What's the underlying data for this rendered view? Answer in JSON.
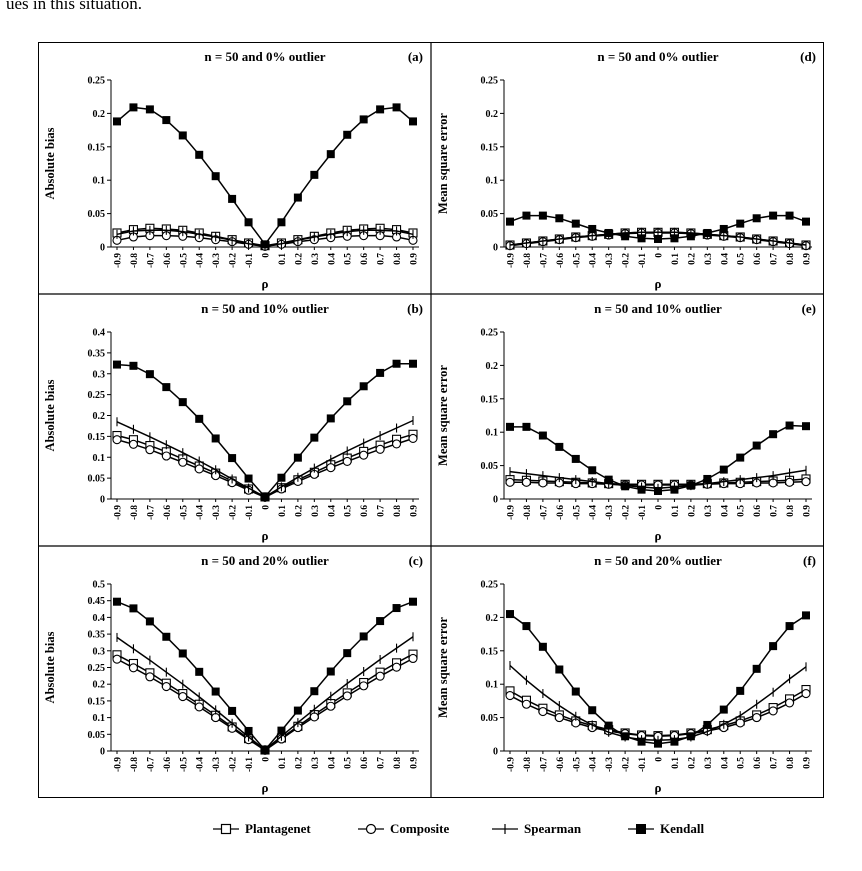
{
  "top_text": "ues in this situation.",
  "legend": [
    {
      "name": "Plantagenet",
      "marker": "square-open"
    },
    {
      "name": "Composite",
      "marker": "circle-open"
    },
    {
      "name": "Spearman",
      "marker": "plus"
    },
    {
      "name": "Kendall",
      "marker": "square-filled"
    }
  ],
  "colors": {
    "line": "#000000",
    "background": "#ffffff"
  },
  "chart_data": [
    {
      "panel": "(a)",
      "type": "line",
      "title": "n = 50 and 0% outlier",
      "xlabel": "ρ",
      "ylabel": "Absolute bias",
      "x": [
        -0.9,
        -0.8,
        -0.7,
        -0.6,
        -0.5,
        -0.4,
        -0.3,
        -0.2,
        -0.1,
        0,
        0.1,
        0.2,
        0.3,
        0.4,
        0.5,
        0.6,
        0.7,
        0.8,
        0.9
      ],
      "x_ticks": [
        "-0.9",
        "-0.8",
        "-0.7",
        "-0.6",
        "-0.5",
        "-0.4",
        "-0.3",
        "-0.2",
        "-0.1",
        "0",
        "0.1",
        "0.2",
        "0.3",
        "0.4",
        "0.5",
        "0.6",
        "0.7",
        "0.8",
        "0.9"
      ],
      "ylim": [
        0,
        0.25
      ],
      "y_ticks": [
        0,
        0.05,
        0.1,
        0.15,
        0.2,
        0.25
      ],
      "y_tick_labels": [
        "0",
        "0.05",
        "0.1",
        "0.15",
        "0.2",
        "0.25"
      ],
      "series": [
        {
          "name": "Plantagenet",
          "values": [
            0.021,
            0.026,
            0.028,
            0.027,
            0.025,
            0.021,
            0.016,
            0.011,
            0.006,
            0.002,
            0.006,
            0.011,
            0.016,
            0.021,
            0.025,
            0.027,
            0.028,
            0.026,
            0.021
          ]
        },
        {
          "name": "Composite",
          "values": [
            0.01,
            0.015,
            0.017,
            0.017,
            0.016,
            0.014,
            0.011,
            0.008,
            0.004,
            0.001,
            0.004,
            0.008,
            0.011,
            0.014,
            0.016,
            0.017,
            0.017,
            0.015,
            0.01
          ]
        },
        {
          "name": "Spearman",
          "values": [
            0.019,
            0.024,
            0.025,
            0.025,
            0.023,
            0.019,
            0.015,
            0.01,
            0.005,
            0.001,
            0.005,
            0.01,
            0.015,
            0.019,
            0.023,
            0.025,
            0.025,
            0.024,
            0.019
          ]
        },
        {
          "name": "Kendall",
          "values": [
            0.188,
            0.209,
            0.206,
            0.19,
            0.167,
            0.138,
            0.106,
            0.072,
            0.037,
            0.004,
            0.037,
            0.074,
            0.108,
            0.139,
            0.168,
            0.191,
            0.206,
            0.209,
            0.188
          ]
        }
      ]
    },
    {
      "panel": "(b)",
      "type": "line",
      "title": "n = 50 and 10% outlier",
      "xlabel": "ρ",
      "ylabel": "Absolute bias",
      "x": [
        -0.9,
        -0.8,
        -0.7,
        -0.6,
        -0.5,
        -0.4,
        -0.3,
        -0.2,
        -0.1,
        0,
        0.1,
        0.2,
        0.3,
        0.4,
        0.5,
        0.6,
        0.7,
        0.8,
        0.9
      ],
      "x_ticks": [
        "-0.9",
        "-0.8",
        "-0.7",
        "-0.6",
        "-0.5",
        "-0.4",
        "-0.3",
        "-0.2",
        "-0.1",
        "0",
        "0.1",
        "0.2",
        "0.3",
        "0.4",
        "0.5",
        "0.6",
        "0.7",
        "0.8",
        "0.9"
      ],
      "ylim": [
        0,
        0.4
      ],
      "y_ticks": [
        0,
        0.05,
        0.1,
        0.15,
        0.2,
        0.25,
        0.3,
        0.35,
        0.4
      ],
      "y_tick_labels": [
        "0",
        "0.05",
        "0.1",
        "0.15",
        "0.2",
        "0.25",
        "0.3",
        "0.35",
        "0.4"
      ],
      "series": [
        {
          "name": "Plantagenet",
          "values": [
            0.152,
            0.142,
            0.128,
            0.113,
            0.096,
            0.079,
            0.062,
            0.043,
            0.024,
            0.005,
            0.027,
            0.046,
            0.064,
            0.082,
            0.098,
            0.114,
            0.129,
            0.143,
            0.155
          ]
        },
        {
          "name": "Composite",
          "values": [
            0.142,
            0.131,
            0.118,
            0.103,
            0.088,
            0.072,
            0.056,
            0.039,
            0.021,
            0.004,
            0.024,
            0.042,
            0.059,
            0.075,
            0.09,
            0.105,
            0.119,
            0.132,
            0.145
          ]
        },
        {
          "name": "Spearman",
          "values": [
            0.185,
            0.167,
            0.149,
            0.13,
            0.111,
            0.091,
            0.07,
            0.048,
            0.026,
            0.005,
            0.029,
            0.052,
            0.074,
            0.095,
            0.115,
            0.134,
            0.152,
            0.17,
            0.188
          ]
        },
        {
          "name": "Kendall",
          "values": [
            0.322,
            0.319,
            0.299,
            0.268,
            0.232,
            0.192,
            0.145,
            0.098,
            0.049,
            0.005,
            0.051,
            0.099,
            0.147,
            0.193,
            0.234,
            0.27,
            0.302,
            0.324,
            0.324
          ]
        }
      ]
    },
    {
      "panel": "(c)",
      "type": "line",
      "title": "n = 50 and 20% outlier",
      "xlabel": "ρ",
      "ylabel": "Absolute bias",
      "x": [
        -0.9,
        -0.8,
        -0.7,
        -0.6,
        -0.5,
        -0.4,
        -0.3,
        -0.2,
        -0.1,
        0,
        0.1,
        0.2,
        0.3,
        0.4,
        0.5,
        0.6,
        0.7,
        0.8,
        0.9
      ],
      "x_ticks": [
        "-0.9",
        "-0.8",
        "-0.7",
        "-0.6",
        "-0.5",
        "-0.4",
        "-0.3",
        "-0.2",
        "-0.1",
        "0",
        "0.1",
        "0.2",
        "0.3",
        "0.4",
        "0.5",
        "0.6",
        "0.7",
        "0.8",
        "0.9"
      ],
      "ylim": [
        0,
        0.5
      ],
      "y_ticks": [
        0,
        0.05,
        0.1,
        0.15,
        0.2,
        0.25,
        0.3,
        0.35,
        0.4,
        0.45,
        0.5
      ],
      "y_tick_labels": [
        "0",
        "0.05",
        "0.1",
        "0.15",
        "0.2",
        "0.25",
        "0.3",
        "0.35",
        "0.4",
        "0.45",
        "0.5"
      ],
      "series": [
        {
          "name": "Plantagenet",
          "values": [
            0.288,
            0.262,
            0.234,
            0.203,
            0.172,
            0.14,
            0.107,
            0.072,
            0.037,
            0.003,
            0.039,
            0.074,
            0.109,
            0.142,
            0.174,
            0.205,
            0.236,
            0.264,
            0.29
          ]
        },
        {
          "name": "Composite",
          "values": [
            0.275,
            0.249,
            0.222,
            0.193,
            0.163,
            0.132,
            0.1,
            0.068,
            0.034,
            0.002,
            0.036,
            0.07,
            0.102,
            0.134,
            0.165,
            0.195,
            0.224,
            0.251,
            0.277
          ]
        },
        {
          "name": "Spearman",
          "values": [
            0.34,
            0.306,
            0.272,
            0.236,
            0.2,
            0.162,
            0.123,
            0.083,
            0.042,
            0.004,
            0.044,
            0.085,
            0.125,
            0.164,
            0.202,
            0.238,
            0.274,
            0.308,
            0.342
          ]
        },
        {
          "name": "Kendall",
          "values": [
            0.447,
            0.427,
            0.388,
            0.342,
            0.292,
            0.237,
            0.178,
            0.12,
            0.06,
            0.003,
            0.061,
            0.121,
            0.179,
            0.238,
            0.293,
            0.343,
            0.389,
            0.428,
            0.447
          ]
        }
      ]
    },
    {
      "panel": "(d)",
      "type": "line",
      "title": "n = 50 and 0% outlier",
      "xlabel": "ρ",
      "ylabel": "Mean square error",
      "x": [
        -0.9,
        -0.8,
        -0.7,
        -0.6,
        -0.5,
        -0.4,
        -0.3,
        -0.2,
        -0.1,
        0,
        0.1,
        0.2,
        0.3,
        0.4,
        0.5,
        0.6,
        0.7,
        0.8,
        0.9
      ],
      "x_ticks": [
        "-0.9",
        "-0.8",
        "-0.7",
        "-0.6",
        "-0.5",
        "-0.4",
        "-0.3",
        "-0.2",
        "-0.1",
        "0",
        "0.1",
        "0.2",
        "0.3",
        "0.4",
        "0.5",
        "0.6",
        "0.7",
        "0.8",
        "0.9"
      ],
      "ylim": [
        0,
        0.25
      ],
      "y_ticks": [
        0,
        0.05,
        0.1,
        0.15,
        0.2,
        0.25
      ],
      "y_tick_labels": [
        "0",
        "0.05",
        "0.1",
        "0.15",
        "0.2",
        "0.25"
      ],
      "series": [
        {
          "name": "Plantagenet",
          "values": [
            0.003,
            0.006,
            0.009,
            0.012,
            0.015,
            0.017,
            0.019,
            0.021,
            0.022,
            0.022,
            0.022,
            0.021,
            0.019,
            0.017,
            0.015,
            0.012,
            0.009,
            0.006,
            0.003
          ]
        },
        {
          "name": "Composite",
          "values": [
            0.002,
            0.005,
            0.008,
            0.011,
            0.014,
            0.016,
            0.018,
            0.02,
            0.021,
            0.021,
            0.021,
            0.02,
            0.018,
            0.016,
            0.014,
            0.011,
            0.008,
            0.005,
            0.002
          ]
        },
        {
          "name": "Spearman",
          "values": [
            0.003,
            0.006,
            0.009,
            0.012,
            0.015,
            0.017,
            0.019,
            0.021,
            0.022,
            0.022,
            0.022,
            0.021,
            0.019,
            0.017,
            0.015,
            0.012,
            0.009,
            0.006,
            0.003
          ]
        },
        {
          "name": "Kendall",
          "values": [
            0.038,
            0.047,
            0.047,
            0.043,
            0.035,
            0.027,
            0.021,
            0.016,
            0.013,
            0.012,
            0.013,
            0.016,
            0.021,
            0.027,
            0.035,
            0.043,
            0.047,
            0.047,
            0.038
          ]
        }
      ]
    },
    {
      "panel": "(e)",
      "type": "line",
      "title": "n = 50 and 10% outlier",
      "xlabel": "ρ",
      "ylabel": "Mean square error",
      "x": [
        -0.9,
        -0.8,
        -0.7,
        -0.6,
        -0.5,
        -0.4,
        -0.3,
        -0.2,
        -0.1,
        0,
        0.1,
        0.2,
        0.3,
        0.4,
        0.5,
        0.6,
        0.7,
        0.8,
        0.9
      ],
      "x_ticks": [
        "-0.9",
        "-0.8",
        "-0.7",
        "-0.6",
        "-0.5",
        "-0.4",
        "-0.3",
        "-0.2",
        "-0.1",
        "0",
        "0.1",
        "0.2",
        "0.3",
        "0.4",
        "0.5",
        "0.6",
        "0.7",
        "0.8",
        "0.9"
      ],
      "ylim": [
        0,
        0.25
      ],
      "y_ticks": [
        0,
        0.05,
        0.1,
        0.15,
        0.2,
        0.25
      ],
      "y_tick_labels": [
        "0",
        "0.05",
        "0.1",
        "0.15",
        "0.2",
        "0.25"
      ],
      "series": [
        {
          "name": "Plantagenet",
          "values": [
            0.029,
            0.028,
            0.027,
            0.026,
            0.025,
            0.024,
            0.023,
            0.022,
            0.022,
            0.022,
            0.022,
            0.022,
            0.023,
            0.024,
            0.025,
            0.026,
            0.027,
            0.028,
            0.03
          ]
        },
        {
          "name": "Composite",
          "values": [
            0.025,
            0.025,
            0.024,
            0.024,
            0.023,
            0.023,
            0.022,
            0.021,
            0.021,
            0.021,
            0.021,
            0.021,
            0.022,
            0.023,
            0.023,
            0.024,
            0.024,
            0.025,
            0.026
          ]
        },
        {
          "name": "Spearman",
          "values": [
            0.041,
            0.038,
            0.035,
            0.032,
            0.029,
            0.026,
            0.023,
            0.02,
            0.018,
            0.016,
            0.018,
            0.02,
            0.023,
            0.026,
            0.029,
            0.032,
            0.035,
            0.039,
            0.043
          ]
        },
        {
          "name": "Kendall",
          "values": [
            0.108,
            0.108,
            0.095,
            0.078,
            0.06,
            0.043,
            0.029,
            0.019,
            0.014,
            0.012,
            0.014,
            0.02,
            0.03,
            0.044,
            0.062,
            0.08,
            0.097,
            0.11,
            0.109
          ]
        }
      ]
    },
    {
      "panel": "(f)",
      "type": "line",
      "title": "n = 50 and 20% outlier",
      "xlabel": "ρ",
      "ylabel": "Mean square error",
      "x": [
        -0.9,
        -0.8,
        -0.7,
        -0.6,
        -0.5,
        -0.4,
        -0.3,
        -0.2,
        -0.1,
        0,
        0.1,
        0.2,
        0.3,
        0.4,
        0.5,
        0.6,
        0.7,
        0.8,
        0.9
      ],
      "x_ticks": [
        "-0.9",
        "-0.8",
        "-0.7",
        "-0.6",
        "-0.5",
        "-0.4",
        "-0.3",
        "-0.2",
        "-0.1",
        "0",
        "0.1",
        "0.2",
        "0.3",
        "0.4",
        "0.5",
        "0.6",
        "0.7",
        "0.8",
        "0.9"
      ],
      "ylim": [
        0,
        0.25
      ],
      "y_ticks": [
        0,
        0.05,
        0.1,
        0.15,
        0.2,
        0.25
      ],
      "y_tick_labels": [
        "0",
        "0.05",
        "0.1",
        "0.15",
        "0.2",
        "0.25"
      ],
      "series": [
        {
          "name": "Plantagenet",
          "values": [
            0.09,
            0.076,
            0.064,
            0.054,
            0.045,
            0.038,
            0.032,
            0.027,
            0.024,
            0.023,
            0.024,
            0.027,
            0.032,
            0.038,
            0.045,
            0.054,
            0.065,
            0.078,
            0.092
          ]
        },
        {
          "name": "Composite",
          "values": [
            0.083,
            0.07,
            0.059,
            0.05,
            0.042,
            0.035,
            0.03,
            0.026,
            0.023,
            0.022,
            0.023,
            0.026,
            0.03,
            0.035,
            0.042,
            0.05,
            0.06,
            0.072,
            0.086
          ]
        },
        {
          "name": "Spearman",
          "values": [
            0.128,
            0.106,
            0.086,
            0.068,
            0.052,
            0.039,
            0.028,
            0.021,
            0.017,
            0.016,
            0.017,
            0.021,
            0.029,
            0.04,
            0.053,
            0.07,
            0.088,
            0.108,
            0.126
          ]
        },
        {
          "name": "Kendall",
          "values": [
            0.205,
            0.187,
            0.156,
            0.122,
            0.089,
            0.061,
            0.038,
            0.022,
            0.014,
            0.011,
            0.014,
            0.022,
            0.039,
            0.062,
            0.09,
            0.123,
            0.157,
            0.187,
            0.203
          ]
        }
      ]
    }
  ]
}
